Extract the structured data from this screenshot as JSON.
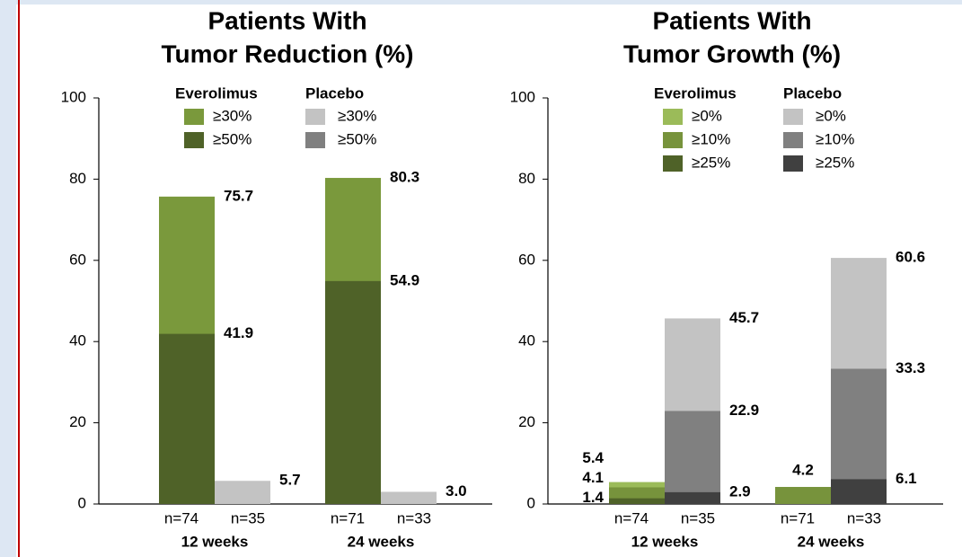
{
  "chart_data": [
    {
      "type": "bar",
      "title": [
        "Patients With",
        "Tumor Reduction (%)"
      ],
      "categories": [
        "12 weeks",
        "24 weeks"
      ],
      "ylim": [
        0,
        100
      ],
      "yticks": [
        0,
        20,
        40,
        60,
        80,
        100
      ],
      "groups": [
        {
          "name": "Everolimus",
          "n_labels": [
            "n=74",
            "n=71"
          ],
          "series": [
            {
              "name": "≥30%",
              "color": "#7a993c",
              "values": [
                75.7,
                80.3
              ]
            },
            {
              "name": "≥50%",
              "color": "#4f6228",
              "values": [
                41.9,
                54.9
              ]
            }
          ]
        },
        {
          "name": "Placebo",
          "n_labels": [
            "n=35",
            "n=33"
          ],
          "series": [
            {
              "name": "≥30%",
              "color": "#c3c3c3",
              "values": [
                5.7,
                3.0
              ],
              "value_labels": [
                "5.7",
                "3.0"
              ]
            },
            {
              "name": "≥50%",
              "color": "#808080",
              "values": [
                null,
                null
              ]
            }
          ]
        }
      ]
    },
    {
      "type": "bar",
      "title": [
        "Patients With",
        "Tumor Growth (%)"
      ],
      "categories": [
        "12 weeks",
        "24 weeks"
      ],
      "ylim": [
        0,
        100
      ],
      "yticks": [
        0,
        20,
        40,
        60,
        80,
        100
      ],
      "groups": [
        {
          "name": "Everolimus",
          "n_labels": [
            "n=74",
            "n=71"
          ],
          "series": [
            {
              "name": "≥0%",
              "color": "#9bbb59",
              "values": [
                5.4,
                null
              ]
            },
            {
              "name": "≥10%",
              "color": "#77933c",
              "values": [
                4.1,
                4.2
              ]
            },
            {
              "name": "≥25%",
              "color": "#4f6228",
              "values": [
                1.4,
                null
              ]
            }
          ]
        },
        {
          "name": "Placebo",
          "n_labels": [
            "n=35",
            "n=33"
          ],
          "series": [
            {
              "name": "≥0%",
              "color": "#c3c3c3",
              "values": [
                45.7,
                60.6
              ]
            },
            {
              "name": "≥10%",
              "color": "#808080",
              "values": [
                22.9,
                33.3
              ]
            },
            {
              "name": "≥25%",
              "color": "#404040",
              "values": [
                2.9,
                6.1
              ]
            }
          ]
        }
      ]
    }
  ]
}
